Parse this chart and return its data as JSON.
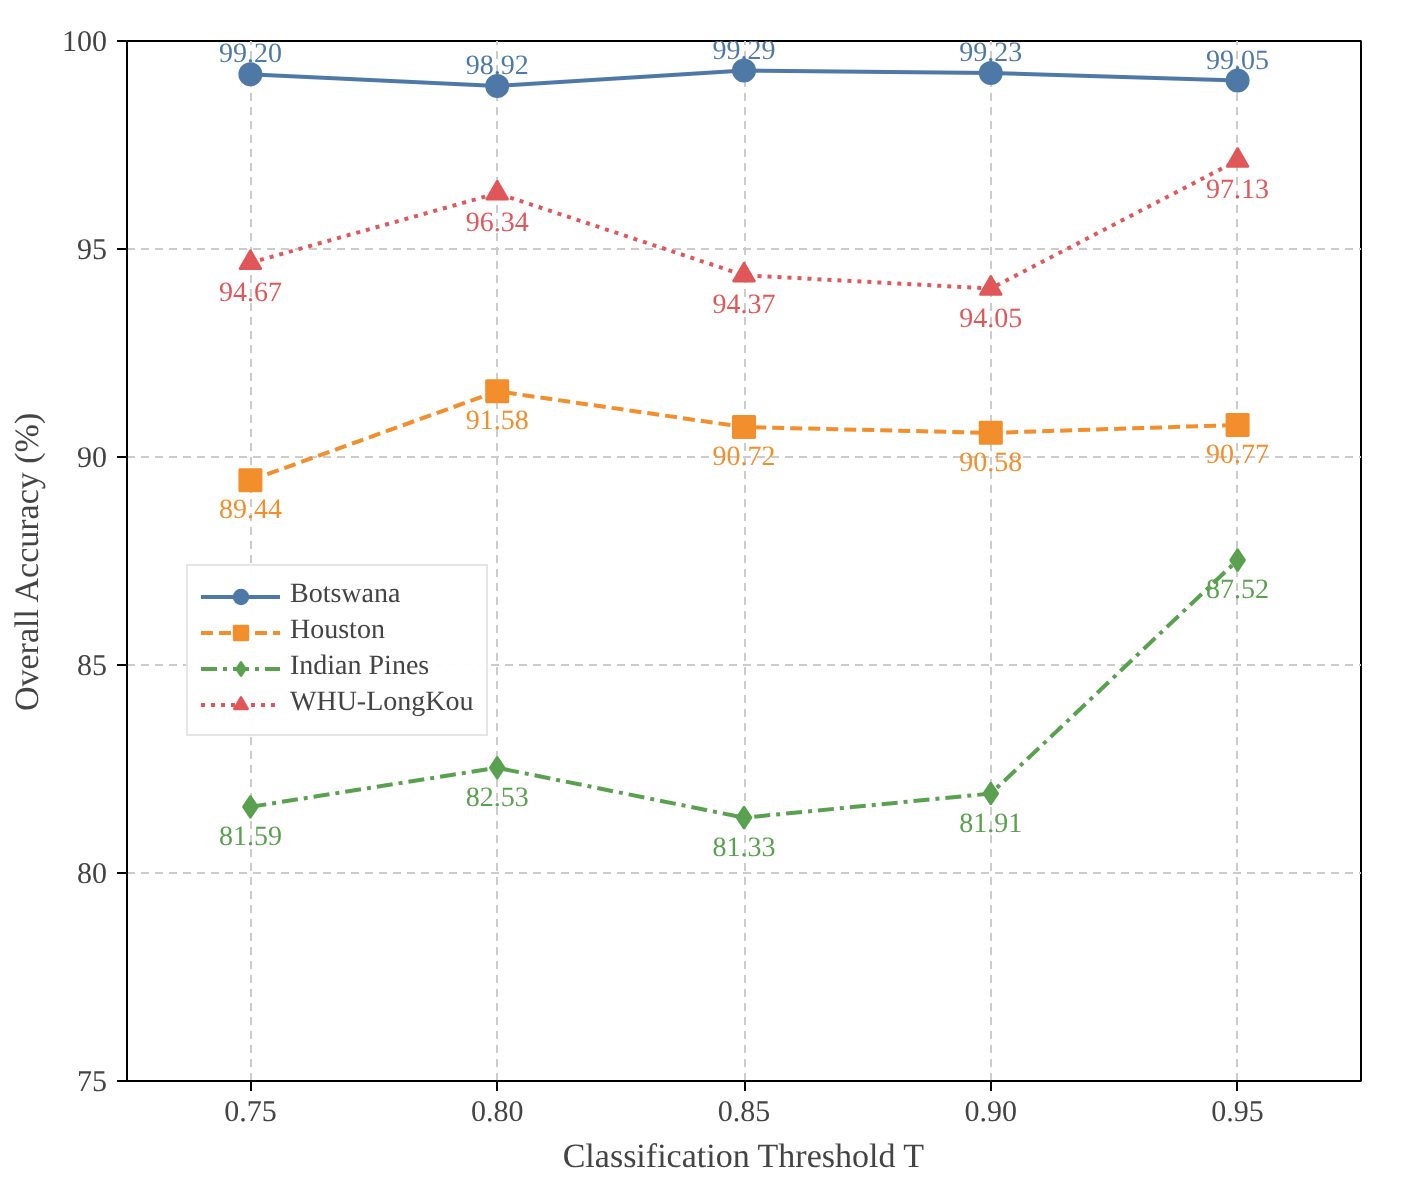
{
  "chart_data": {
    "type": "line",
    "xlabel": "Classification Threshold T",
    "ylabel": "Overall Accuracy (%)",
    "x": [
      0.75,
      0.8,
      0.85,
      0.9,
      0.95
    ],
    "xticks": [
      {
        "value": 0.75,
        "label": "0.75"
      },
      {
        "value": 0.8,
        "label": "0.80"
      },
      {
        "value": 0.85,
        "label": "0.85"
      },
      {
        "value": 0.9,
        "label": "0.90"
      },
      {
        "value": 0.95,
        "label": "0.95"
      }
    ],
    "xlim": [
      0.725,
      0.975
    ],
    "ylim": [
      75,
      100
    ],
    "yticks": [
      75,
      80,
      85,
      90,
      95,
      100
    ],
    "grid": true,
    "legend": "left",
    "series": [
      {
        "name": "Botswana",
        "color": "#4e79a7",
        "marker": "circle",
        "line_style": "solid",
        "values": [
          99.2,
          98.92,
          99.29,
          99.23,
          99.05
        ],
        "value_labels": [
          "99.20",
          "98.92",
          "99.29",
          "99.23",
          "99.05"
        ]
      },
      {
        "name": "Houston",
        "color": "#f28e2b",
        "marker": "square",
        "line_style": "dashed",
        "values": [
          89.44,
          91.58,
          90.72,
          90.58,
          90.77
        ],
        "value_labels": [
          "89.44",
          "91.58",
          "90.72",
          "90.58",
          "90.77"
        ]
      },
      {
        "name": "Indian Pines",
        "color": "#59a14f",
        "marker": "diamond",
        "line_style": "dashdot",
        "values": [
          81.59,
          82.53,
          81.33,
          81.91,
          87.52
        ],
        "value_labels": [
          "81.59",
          "82.53",
          "81.33",
          "81.91",
          "87.52"
        ]
      },
      {
        "name": "WHU-LongKou",
        "color": "#e15759",
        "marker": "triangle",
        "line_style": "dotted",
        "values": [
          94.67,
          96.34,
          94.37,
          94.05,
          97.13
        ],
        "value_labels": [
          "94.67",
          "96.34",
          "94.37",
          "94.05",
          "97.13"
        ]
      }
    ]
  }
}
